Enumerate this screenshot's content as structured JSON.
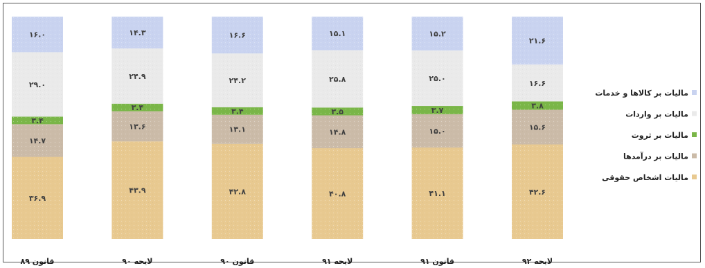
{
  "chart_data": {
    "type": "bar",
    "stacked": true,
    "normalized_percent": true,
    "categories": [
      "قانون ۸۹",
      "لایحه ۹۰",
      "قانون ۹۰",
      "لایحه ۹۱",
      "قانون ۹۱",
      "لایحه ۹۲"
    ],
    "series": [
      {
        "name": "مالیات اشخاص حقوقی",
        "color": "#e8c990",
        "values": [
          36.9,
          43.9,
          42.8,
          40.8,
          41.1,
          42.6
        ],
        "labels": [
          "۳۶.۹",
          "۴۳.۹",
          "۴۲.۸",
          "۴۰.۸",
          "۴۱.۱",
          "۴۲.۶"
        ]
      },
      {
        "name": "مالیات بر درآمدها",
        "color": "#cbbba8",
        "values": [
          14.7,
          13.6,
          13.1,
          14.8,
          15.0,
          15.6
        ],
        "labels": [
          "۱۴.۷",
          "۱۳.۶",
          "۱۳.۱",
          "۱۴.۸",
          "۱۵.۰",
          "۱۵.۶"
        ]
      },
      {
        "name": "مالیات بر ثروت",
        "color": "#7ab648",
        "values": [
          3.4,
          3.4,
          3.4,
          3.5,
          3.7,
          3.8
        ],
        "labels": [
          "۳.۴",
          "۳.۴",
          "۳.۴",
          "۳.۵",
          "۳.۷",
          "۳.۸"
        ]
      },
      {
        "name": "مالیات بر واردات",
        "color": "#eaeaea",
        "values": [
          29.0,
          24.9,
          24.2,
          25.8,
          25.0,
          16.6
        ],
        "labels": [
          "۲۹.۰",
          "۲۴.۹",
          "۲۴.۲",
          "۲۵.۸",
          "۲۵.۰",
          "۱۶.۶"
        ]
      },
      {
        "name": "مالیات بر کالاها و خدمات",
        "color": "#c9d3f0",
        "values": [
          16.0,
          14.3,
          16.6,
          15.1,
          15.2,
          21.6
        ],
        "labels": [
          "۱۶.۰",
          "۱۴.۳",
          "۱۶.۶",
          "۱۵.۱",
          "۱۵.۲",
          "۲۱.۶"
        ]
      }
    ],
    "legend_position": "right",
    "legend_order": [
      4,
      3,
      2,
      1,
      0
    ],
    "ylim": [
      0,
      100
    ],
    "grid": false
  }
}
